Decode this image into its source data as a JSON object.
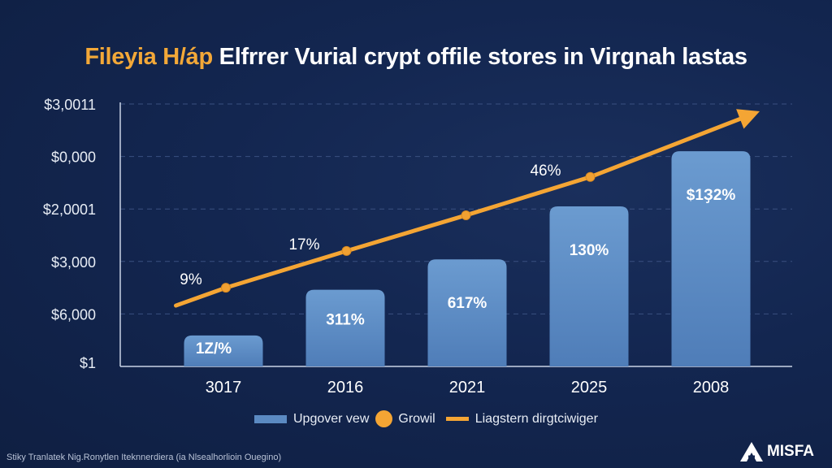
{
  "title": {
    "highlight": "Fileyia H/áp",
    "rest": "Elfrrer Vurial crypt offile stores in Virgnah lastas"
  },
  "chart_data": {
    "type": "bar",
    "title": "Fileyia H/áp Elfrrer Vurial crypt offile stores in Virgnah lastas",
    "categories": [
      "3017",
      "2016",
      "2021",
      "2025",
      "2008"
    ],
    "y_tick_labels": [
      "$1",
      "$6,000",
      "$3,000",
      "$2,0001",
      "$0,000",
      "$3,0011"
    ],
    "ylim": [
      0,
      5
    ],
    "grid": true,
    "series": [
      {
        "name": "Upgover vew",
        "type": "bar",
        "values": [
          0.59,
          1.46,
          2.04,
          3.05,
          4.1
        ],
        "labels": [
          "1Z/%",
          "311%",
          "617%",
          "130%",
          "$1Ҙ2%"
        ]
      },
      {
        "name": "Growil",
        "type": "line",
        "x": [
          -0.39,
          0.02,
          1.01,
          1.99,
          3.01,
          4.4
        ],
        "values": [
          1.16,
          1.5,
          2.2,
          2.88,
          3.61,
          4.86
        ],
        "labels": [
          "",
          "9%",
          "17%",
          "",
          "46%",
          ""
        ]
      }
    ],
    "legend": {
      "placement": "bottom",
      "entries": [
        "Upgover vew",
        "Growil",
        "Liagstern dirgtciwiger"
      ]
    },
    "colors": {
      "bar": "#5b8ac2",
      "line": "#f4a534",
      "background": "#132650"
    }
  },
  "footer": "Stiky Tranlatek Nig.Ronytlen Iteknnerdiera (ia Nlsealhorlioin Ouegino)",
  "logo": "MISFA"
}
